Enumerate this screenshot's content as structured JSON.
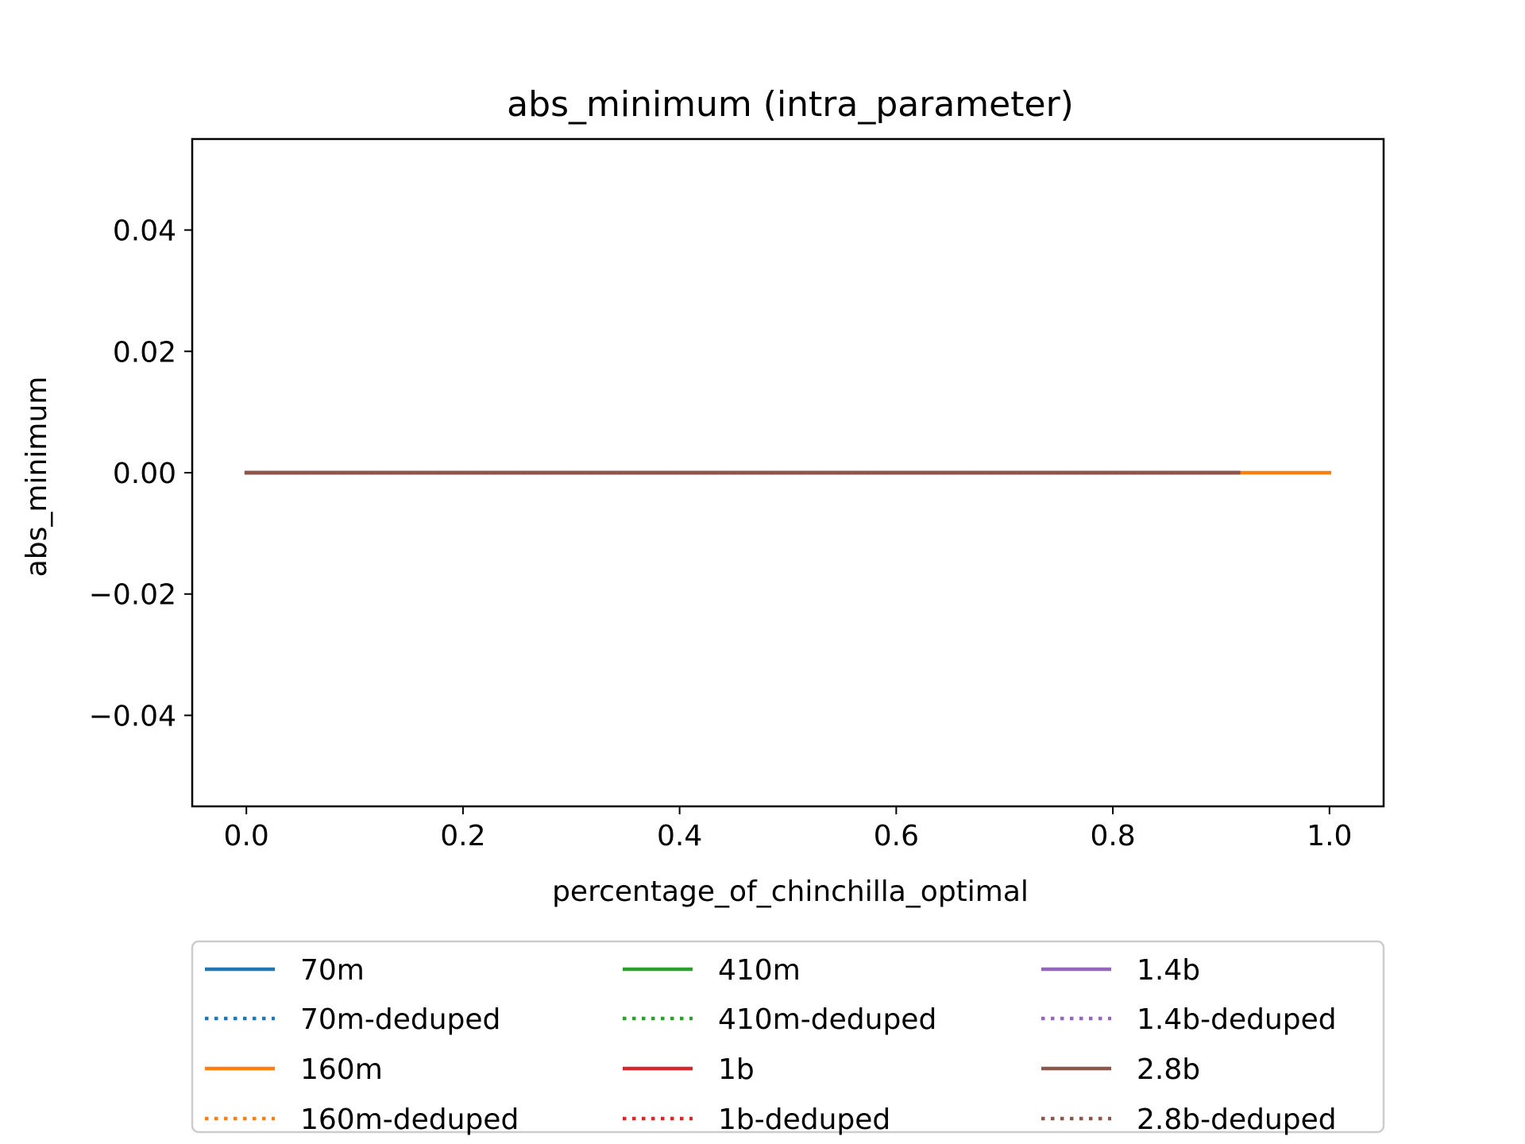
{
  "chart_data": {
    "type": "line",
    "title": "abs_minimum (intra_parameter)",
    "xlabel": "percentage_of_chinchilla_optimal",
    "ylabel": "abs_minimum",
    "xlim": [
      -0.05,
      1.05
    ],
    "ylim": [
      -0.055,
      0.055
    ],
    "x_ticks": [
      0.0,
      0.2,
      0.4,
      0.6,
      0.8,
      1.0
    ],
    "x_tick_labels": [
      "0.0",
      "0.2",
      "0.4",
      "0.6",
      "0.8",
      "1.0"
    ],
    "y_ticks": [
      0.04,
      0.02,
      0.0,
      -0.02,
      -0.04
    ],
    "y_tick_labels": [
      "0.04",
      "0.02",
      "0.00",
      "−0.02",
      "−0.04"
    ],
    "grid": false,
    "legend_placement": "below-center",
    "legend_columns": 3,
    "series": [
      {
        "name": "70m",
        "color": "#1f77b4",
        "style": "solid",
        "x": [
          0.0,
          0.916
        ],
        "y": [
          0.0,
          0.0
        ]
      },
      {
        "name": "70m-deduped",
        "color": "#1f77b4",
        "style": "dotted",
        "x": [
          0.0,
          0.916
        ],
        "y": [
          0.0,
          0.0
        ]
      },
      {
        "name": "160m",
        "color": "#ff7f0e",
        "style": "solid",
        "x": [
          0.0,
          1.0
        ],
        "y": [
          0.0,
          0.0
        ]
      },
      {
        "name": "160m-deduped",
        "color": "#ff7f0e",
        "style": "dotted",
        "x": [
          0.0,
          0.916
        ],
        "y": [
          0.0,
          0.0
        ]
      },
      {
        "name": "410m",
        "color": "#2ca02c",
        "style": "solid",
        "x": [
          0.0,
          0.916
        ],
        "y": [
          0.0,
          0.0
        ]
      },
      {
        "name": "410m-deduped",
        "color": "#2ca02c",
        "style": "dotted",
        "x": [
          0.0,
          0.916
        ],
        "y": [
          0.0,
          0.0
        ]
      },
      {
        "name": "1b",
        "color": "#d62728",
        "style": "solid",
        "x": [
          0.0,
          0.916
        ],
        "y": [
          0.0,
          0.0
        ]
      },
      {
        "name": "1b-deduped",
        "color": "#d62728",
        "style": "dotted",
        "x": [
          0.0,
          0.916
        ],
        "y": [
          0.0,
          0.0
        ]
      },
      {
        "name": "1.4b",
        "color": "#9467bd",
        "style": "solid",
        "x": [
          0.0,
          0.916
        ],
        "y": [
          0.0,
          0.0
        ]
      },
      {
        "name": "1.4b-deduped",
        "color": "#9467bd",
        "style": "dotted",
        "x": [
          0.0,
          0.916
        ],
        "y": [
          0.0,
          0.0
        ]
      },
      {
        "name": "2.8b",
        "color": "#8c564b",
        "style": "solid",
        "x": [
          0.0,
          0.916
        ],
        "y": [
          0.0,
          0.0
        ]
      },
      {
        "name": "2.8b-deduped",
        "color": "#8c564b",
        "style": "dotted",
        "x": [
          0.0,
          0.916
        ],
        "y": [
          0.0,
          0.0
        ]
      }
    ]
  }
}
